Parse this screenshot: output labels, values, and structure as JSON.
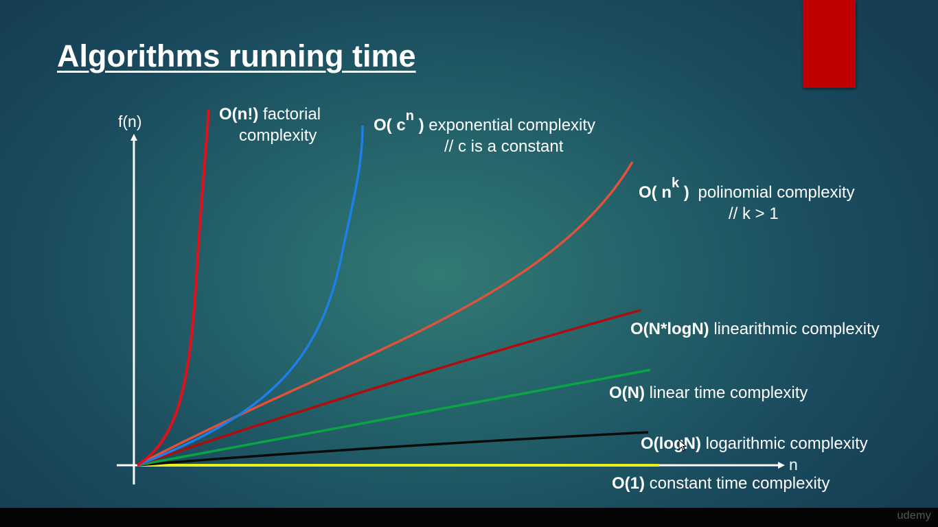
{
  "slide": {
    "title": "Algorithms running time",
    "watermark": "udemy"
  },
  "chart_data": {
    "type": "line",
    "xlabel": "n",
    "ylabel": "f(n)",
    "grid": false,
    "series": [
      {
        "name": "O(n!) factorial complexity",
        "color": "#e0111a"
      },
      {
        "name": "O( c^n ) exponential complexity // c is a constant",
        "color": "#1d7fe8"
      },
      {
        "name": "O( n^k ) polinomial complexity // k > 1",
        "color": "#e0533a"
      },
      {
        "name": "O(N*logN) linearithmic complexity",
        "color": "#b00c0c"
      },
      {
        "name": "O(N) linear time complexity",
        "color": "#0aa543"
      },
      {
        "name": "O(logN) logarithmic complexity",
        "color": "#0a0a0a"
      },
      {
        "name": "O(1) constant time complexity",
        "color": "#ebf01c"
      }
    ]
  },
  "axes": {
    "y_label": "f(n)",
    "x_label": "n"
  },
  "labels": {
    "factorial": {
      "notation": "O(n!)",
      "text": "factorial",
      "text2": "complexity"
    },
    "exponential": {
      "notation_pre": "O( c",
      "superscript": "n",
      "notation_post": " )",
      "text": "exponential complexity",
      "note": "// c is a constant"
    },
    "polynomial": {
      "notation_pre": "O( n",
      "superscript": "k",
      "notation_post": " )",
      "text": "polinomial complexity",
      "note": "// k > 1"
    },
    "linearithmic": {
      "notation": "O(N*logN)",
      "text": "linearithmic complexity"
    },
    "linear": {
      "notation": "O(N)",
      "text": "linear time complexity"
    },
    "logarithmic": {
      "notation": "O(logN)",
      "text": "logarithmic complexity"
    },
    "constant": {
      "notation": "O(1)",
      "text": "constant time complexity"
    }
  },
  "colors": {
    "red_block": "#c00000",
    "axis": "#ffffff"
  }
}
